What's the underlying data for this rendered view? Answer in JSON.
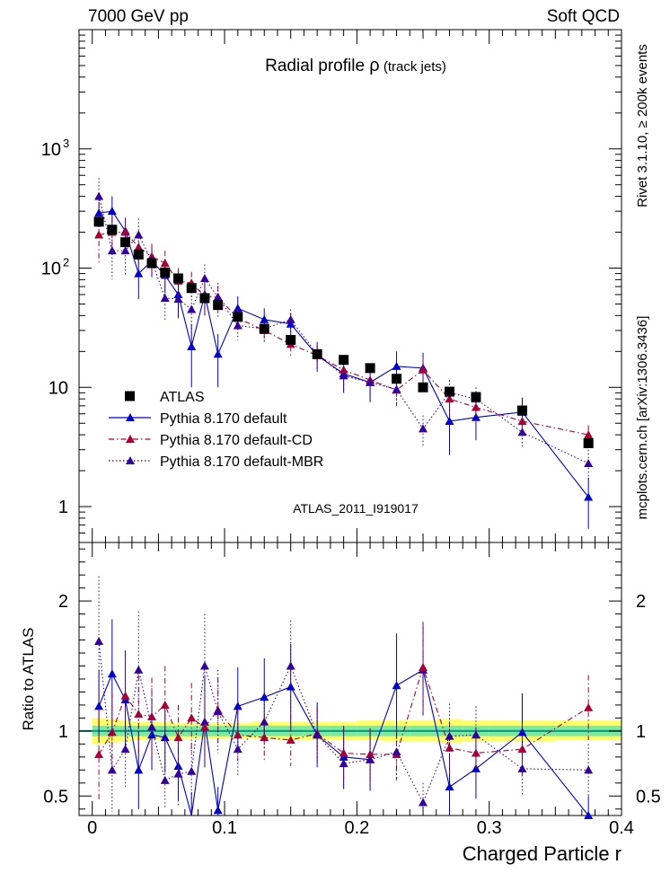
{
  "header": {
    "left": "7000 GeV pp",
    "right": "Soft QCD"
  },
  "side_labels": {
    "rivet": "Rivet 3.1.10, ≥ 200k events",
    "mcplots": "mcplots.cern.ch [arXiv:1306.3436]"
  },
  "colors": {
    "atlas": "#000000",
    "default": "#0000cc",
    "cd": "#aa0033",
    "mbr": "#330099",
    "band_inner": "#7fe89a",
    "band_outer": "#ffff66"
  },
  "chart_data": [
    {
      "type": "scatter",
      "title": "Radial profile",
      "title_symbol": "ρ",
      "title_suffix": "(track jets)",
      "watermark": "ATLAS_2011_I919017",
      "yscale": "log",
      "xlim": [
        -0.01,
        0.4
      ],
      "ylim": [
        0.5,
        10000
      ],
      "y_tick_labels": [
        "1",
        "10",
        "10",
        "10"
      ],
      "y_tick_exponents": [
        "",
        "",
        "2",
        "3"
      ],
      "legend_position": "lower-left",
      "series": [
        {
          "name": "ATLAS",
          "marker": "square",
          "x": [
            0.005,
            0.015,
            0.025,
            0.035,
            0.045,
            0.055,
            0.065,
            0.075,
            0.085,
            0.095,
            0.11,
            0.13,
            0.15,
            0.17,
            0.19,
            0.21,
            0.23,
            0.25,
            0.27,
            0.29,
            0.325,
            0.375
          ],
          "y": [
            245,
            210,
            165,
            130,
            110,
            92,
            82,
            68,
            56,
            49,
            39,
            31,
            25,
            19,
            17,
            14.5,
            11.8,
            10,
            9.2,
            8.3,
            6.4,
            3.4
          ]
        },
        {
          "name": "Pythia 8.170 default",
          "line": "solid",
          "x": [
            0.005,
            0.015,
            0.025,
            0.035,
            0.045,
            0.055,
            0.065,
            0.075,
            0.085,
            0.095,
            0.11,
            0.13,
            0.15,
            0.17,
            0.19,
            0.21,
            0.23,
            0.25,
            0.27,
            0.29,
            0.325,
            0.375
          ],
          "y": [
            290,
            300,
            205,
            90,
            115,
            87,
            60,
            22,
            60,
            19,
            46,
            37,
            34,
            18.5,
            13,
            11,
            15,
            14.5,
            5.2,
            5.6,
            6.2,
            1.2
          ],
          "yerr": [
            70,
            100,
            60,
            35,
            30,
            25,
            22,
            12,
            20,
            9,
            12,
            9,
            8,
            5,
            4,
            3.5,
            5,
            5,
            2.5,
            2,
            2,
            0.55
          ]
        },
        {
          "name": "Pythia 8.170 default-CD",
          "line": "dashdot",
          "x": [
            0.005,
            0.015,
            0.025,
            0.035,
            0.045,
            0.055,
            0.065,
            0.075,
            0.085,
            0.095,
            0.11,
            0.13,
            0.15,
            0.17,
            0.19,
            0.21,
            0.23,
            0.25,
            0.27,
            0.29,
            0.325,
            0.375
          ],
          "y": [
            190,
            200,
            200,
            150,
            125,
            110,
            78,
            75,
            58,
            57,
            38,
            30,
            23,
            18.5,
            14,
            11.5,
            9.5,
            14,
            8,
            6.8,
            5.2,
            4
          ],
          "yerr": [
            80,
            70,
            60,
            45,
            35,
            30,
            22,
            18,
            15,
            14,
            8,
            6,
            5,
            4,
            3.5,
            3,
            2.5,
            4,
            2,
            1.8,
            1.3,
            0.8
          ]
        },
        {
          "name": "Pythia 8.170 default-MBR",
          "line": "dotted",
          "x": [
            0.005,
            0.015,
            0.025,
            0.035,
            0.045,
            0.055,
            0.065,
            0.075,
            0.085,
            0.095,
            0.11,
            0.13,
            0.15,
            0.17,
            0.19,
            0.21,
            0.23,
            0.25,
            0.27,
            0.29,
            0.325,
            0.375
          ],
          "y": [
            400,
            140,
            140,
            190,
            115,
            56,
            55,
            45,
            82,
            57,
            33,
            31,
            37,
            19,
            12.5,
            11,
            9.6,
            4.5,
            9,
            8,
            4.2,
            2.3
          ],
          "yerr": [
            170,
            60,
            55,
            70,
            35,
            20,
            18,
            14,
            25,
            18,
            8,
            7,
            8,
            5,
            3.5,
            3,
            2.5,
            1.3,
            2.5,
            2,
            1.1,
            0.7
          ]
        }
      ]
    },
    {
      "type": "scatter",
      "ylabel": "Ratio to ATLAS",
      "xlabel": "Charged Particle r",
      "xlim": [
        -0.01,
        0.4
      ],
      "ylim": [
        0.35,
        2.45
      ],
      "y_ticks": [
        0.5,
        1,
        2
      ],
      "y_tick_labels": [
        "0.5",
        "1",
        "2"
      ],
      "x_ticks": [
        0,
        0.1,
        0.2,
        0.3,
        0.4
      ],
      "x_tick_labels": [
        "0",
        "0.1",
        "0.2",
        "0.3",
        "0.4"
      ],
      "band": {
        "x_edges": [
          0.0,
          0.01,
          0.02,
          0.03,
          0.04,
          0.05,
          0.06,
          0.07,
          0.08,
          0.09,
          0.1,
          0.12,
          0.14,
          0.16,
          0.18,
          0.2,
          0.22,
          0.24,
          0.26,
          0.28,
          0.3,
          0.35,
          0.4
        ],
        "stat_half": [
          0.04,
          0.04,
          0.04,
          0.04,
          0.04,
          0.04,
          0.04,
          0.04,
          0.04,
          0.04,
          0.04,
          0.04,
          0.04,
          0.04,
          0.04,
          0.04,
          0.04,
          0.04,
          0.04,
          0.04,
          0.04,
          0.04
        ],
        "total_low": [
          0.9,
          0.91,
          0.92,
          0.93,
          0.93,
          0.93,
          0.94,
          0.94,
          0.94,
          0.94,
          0.94,
          0.94,
          0.93,
          0.93,
          0.93,
          0.93,
          0.92,
          0.92,
          0.91,
          0.92,
          0.92,
          0.93
        ],
        "total_high": [
          1.1,
          1.09,
          1.08,
          1.07,
          1.07,
          1.07,
          1.06,
          1.06,
          1.06,
          1.06,
          1.06,
          1.07,
          1.07,
          1.07,
          1.07,
          1.08,
          1.08,
          1.08,
          1.09,
          1.08,
          1.08,
          1.08
        ]
      },
      "series": [
        {
          "name": "Pythia 8.170 default",
          "line": "solid",
          "x": [
            0.005,
            0.015,
            0.025,
            0.035,
            0.045,
            0.055,
            0.065,
            0.075,
            0.085,
            0.095,
            0.11,
            0.13,
            0.15,
            0.17,
            0.19,
            0.21,
            0.23,
            0.25,
            0.27,
            0.29,
            0.325,
            0.375
          ],
          "y": [
            1.19,
            1.44,
            1.24,
            0.7,
            0.97,
            0.95,
            0.73,
            0.33,
            1.07,
            0.39,
            1.19,
            1.26,
            1.34,
            0.97,
            0.8,
            0.78,
            1.35,
            1.47,
            0.57,
            0.71,
            0.99,
            0.35
          ],
          "yerr": [
            0.28,
            0.42,
            0.38,
            0.3,
            0.27,
            0.27,
            0.27,
            0.2,
            0.35,
            0.18,
            0.3,
            0.3,
            0.33,
            0.25,
            0.24,
            0.24,
            0.4,
            0.35,
            0.26,
            0.23,
            0.3,
            0.15
          ]
        },
        {
          "name": "Pythia 8.170 default-CD",
          "line": "dashdot",
          "x": [
            0.005,
            0.015,
            0.025,
            0.035,
            0.045,
            0.055,
            0.065,
            0.075,
            0.085,
            0.095,
            0.11,
            0.13,
            0.15,
            0.17,
            0.19,
            0.21,
            0.23,
            0.25,
            0.27,
            0.29,
            0.325,
            0.375
          ],
          "y": [
            0.82,
            0.99,
            1.27,
            1.13,
            1.11,
            1.2,
            0.95,
            1.1,
            1.03,
            1.16,
            0.97,
            0.95,
            0.93,
            0.98,
            0.83,
            0.82,
            0.82,
            1.49,
            0.87,
            0.83,
            0.86,
            1.18
          ],
          "yerr": [
            0.35,
            0.3,
            0.3,
            0.3,
            0.3,
            0.3,
            0.25,
            0.27,
            0.25,
            0.25,
            0.2,
            0.18,
            0.2,
            0.2,
            0.2,
            0.2,
            0.2,
            0.35,
            0.2,
            0.2,
            0.2,
            0.25
          ]
        },
        {
          "name": "Pythia 8.170 default-MBR",
          "line": "dotted",
          "x": [
            0.005,
            0.015,
            0.025,
            0.035,
            0.045,
            0.055,
            0.065,
            0.075,
            0.085,
            0.095,
            0.11,
            0.13,
            0.15,
            0.17,
            0.19,
            0.21,
            0.23,
            0.25,
            0.27,
            0.29,
            0.325,
            0.375
          ],
          "y": [
            1.69,
            0.7,
            0.86,
            1.47,
            1.03,
            0.62,
            0.67,
            0.69,
            1.5,
            1.15,
            0.86,
            1.07,
            1.5,
            0.97,
            0.75,
            0.78,
            0.84,
            0.45,
            0.96,
            0.97,
            0.71,
            0.7
          ],
          "yerr": [
            0.5,
            0.32,
            0.3,
            0.45,
            0.3,
            0.22,
            0.24,
            0.22,
            0.4,
            0.32,
            0.2,
            0.22,
            0.35,
            0.22,
            0.2,
            0.2,
            0.22,
            0.15,
            0.25,
            0.22,
            0.2,
            0.2
          ]
        }
      ]
    }
  ]
}
